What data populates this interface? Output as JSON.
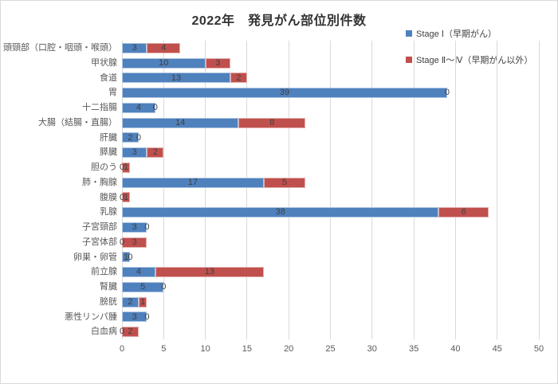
{
  "title": "2022年　発見がん部位別件数",
  "legend": [
    {
      "label": "Stage Ⅰ（早期がん）",
      "color": "#4f81bd"
    },
    {
      "label": "Stage Ⅱ～Ⅳ（早期がん以外）",
      "color": "#c0504d"
    }
  ],
  "colors": {
    "stage1_blue": "#4f81bd",
    "stage2_red": "#c0504d",
    "gridline": "#d9d9d9",
    "axis_text": "#595959",
    "data_label_text": "#404040",
    "title_text": "#333333"
  },
  "chart_data": {
    "type": "bar",
    "orientation": "horizontal",
    "stacked": true,
    "title": "2022年　発見がん部位別件数",
    "categories": [
      "頭頸部（口腔・咽頭・喉頭）",
      "甲状腺",
      "食道",
      "胃",
      "十二指腸",
      "大腸（結腸・直腸）",
      "肝臓",
      "膵臓",
      "胆のう",
      "肺・胸腺",
      "腹膜",
      "乳腺",
      "子宮頸部",
      "子宮体部",
      "卵巣・卵管",
      "前立腺",
      "腎臓",
      "膀胱",
      "悪性リンパ腫",
      "白血病"
    ],
    "series": [
      {
        "name": "Stage Ⅰ（早期がん）",
        "color": "#4f81bd",
        "values": [
          3,
          10,
          13,
          39,
          4,
          14,
          2,
          3,
          0,
          17,
          0,
          38,
          3,
          0,
          1,
          4,
          5,
          2,
          3,
          0
        ]
      },
      {
        "name": "Stage Ⅱ～Ⅳ（早期がん以外）",
        "color": "#c0504d",
        "values": [
          4,
          3,
          2,
          0,
          0,
          8,
          0,
          2,
          1,
          5,
          1,
          6,
          0,
          3,
          0,
          13,
          0,
          1,
          0,
          2
        ]
      }
    ],
    "xlim": [
      0,
      50
    ],
    "xticks": [
      0,
      5,
      10,
      15,
      20,
      25,
      30,
      35,
      40,
      45,
      50
    ],
    "grid": true,
    "data_labels": true,
    "legend_position": "top-right"
  }
}
